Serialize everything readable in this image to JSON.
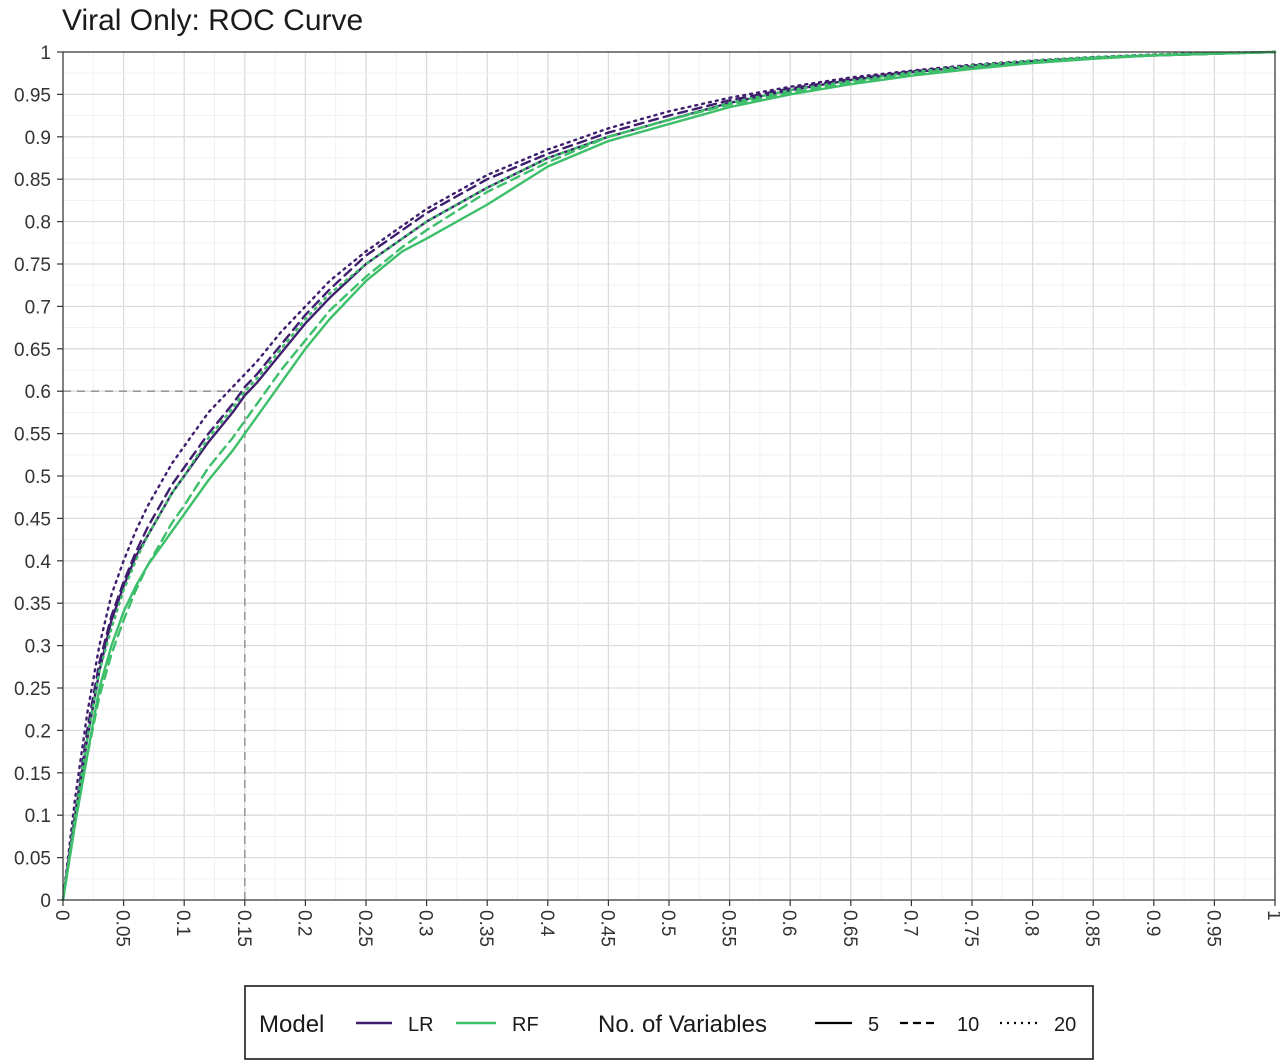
{
  "chart_data": {
    "type": "line",
    "title": "Viral Only: ROC Curve",
    "xlabel": "",
    "ylabel": "",
    "xlim": [
      0,
      1
    ],
    "ylim": [
      0,
      1
    ],
    "grid": true,
    "x_ticks": [
      "0",
      "0.05",
      "0.1",
      "0.15",
      "0.2",
      "0.25",
      "0.3",
      "0.35",
      "0.4",
      "0.45",
      "0.5",
      "0.55",
      "0.6",
      "0.65",
      "0.7",
      "0.75",
      "0.8",
      "0.85",
      "0.9",
      "0.95",
      "1"
    ],
    "y_ticks": [
      "0",
      "0.05",
      "0.1",
      "0.15",
      "0.2",
      "0.25",
      "0.3",
      "0.35",
      "0.4",
      "0.45",
      "0.5",
      "0.55",
      "0.6",
      "0.65",
      "0.7",
      "0.75",
      "0.8",
      "0.85",
      "0.9",
      "0.95",
      "1"
    ],
    "reference_lines": [
      {
        "axis": "y",
        "value": 0.6,
        "from": 0,
        "to": 0.15,
        "style": "dashed",
        "color": "#999999"
      },
      {
        "axis": "x",
        "value": 0.15,
        "from": 0,
        "to": 0.6,
        "style": "dashed",
        "color": "#999999"
      }
    ],
    "legend": {
      "placement": "bottom",
      "model_title": "Model",
      "model_entries": [
        {
          "label": "LR",
          "color": "#3f1e6e"
        },
        {
          "label": "RF",
          "color": "#3dbf6a"
        }
      ],
      "vars_title": "No. of Variables",
      "vars_entries": [
        {
          "label": "5",
          "style": "solid"
        },
        {
          "label": "10",
          "style": "dashed"
        },
        {
          "label": "20",
          "style": "dotted"
        }
      ]
    },
    "series": [
      {
        "model": "LR",
        "variables": "5",
        "color": "#3f1e6e",
        "style": "solid",
        "x": [
          0,
          0.01,
          0.02,
          0.03,
          0.04,
          0.05,
          0.06,
          0.07,
          0.08,
          0.09,
          0.1,
          0.12,
          0.14,
          0.15,
          0.16,
          0.18,
          0.2,
          0.22,
          0.25,
          0.28,
          0.3,
          0.35,
          0.4,
          0.45,
          0.5,
          0.55,
          0.6,
          0.65,
          0.7,
          0.75,
          0.8,
          0.85,
          0.9,
          0.95,
          1
        ],
        "y": [
          0,
          0.1,
          0.19,
          0.27,
          0.33,
          0.37,
          0.405,
          0.43,
          0.455,
          0.48,
          0.5,
          0.54,
          0.575,
          0.595,
          0.61,
          0.645,
          0.68,
          0.71,
          0.75,
          0.78,
          0.8,
          0.84,
          0.875,
          0.9,
          0.92,
          0.94,
          0.955,
          0.967,
          0.976,
          0.983,
          0.989,
          0.993,
          0.996,
          0.998,
          1
        ]
      },
      {
        "model": "LR",
        "variables": "10",
        "color": "#3f1e6e",
        "style": "dashed",
        "x": [
          0,
          0.01,
          0.02,
          0.03,
          0.04,
          0.05,
          0.06,
          0.07,
          0.08,
          0.09,
          0.1,
          0.12,
          0.14,
          0.15,
          0.16,
          0.18,
          0.2,
          0.22,
          0.25,
          0.28,
          0.3,
          0.35,
          0.4,
          0.45,
          0.5,
          0.55,
          0.6,
          0.65,
          0.7,
          0.75,
          0.8,
          0.85,
          0.9,
          0.95,
          1
        ],
        "y": [
          0,
          0.1,
          0.2,
          0.28,
          0.335,
          0.375,
          0.41,
          0.44,
          0.465,
          0.49,
          0.51,
          0.55,
          0.585,
          0.605,
          0.62,
          0.655,
          0.69,
          0.72,
          0.76,
          0.79,
          0.81,
          0.85,
          0.88,
          0.905,
          0.925,
          0.943,
          0.957,
          0.968,
          0.977,
          0.984,
          0.989,
          0.993,
          0.996,
          0.998,
          1
        ]
      },
      {
        "model": "LR",
        "variables": "20",
        "color": "#3f1e6e",
        "style": "dotted",
        "x": [
          0,
          0.01,
          0.02,
          0.03,
          0.04,
          0.05,
          0.06,
          0.07,
          0.08,
          0.09,
          0.1,
          0.12,
          0.14,
          0.15,
          0.16,
          0.18,
          0.2,
          0.22,
          0.25,
          0.28,
          0.3,
          0.35,
          0.4,
          0.45,
          0.5,
          0.55,
          0.6,
          0.65,
          0.7,
          0.75,
          0.8,
          0.85,
          0.9,
          0.95,
          1
        ],
        "y": [
          0,
          0.12,
          0.22,
          0.3,
          0.36,
          0.4,
          0.435,
          0.465,
          0.49,
          0.515,
          0.535,
          0.575,
          0.605,
          0.62,
          0.635,
          0.67,
          0.7,
          0.73,
          0.765,
          0.795,
          0.815,
          0.855,
          0.885,
          0.91,
          0.93,
          0.946,
          0.959,
          0.97,
          0.978,
          0.985,
          0.99,
          0.994,
          0.997,
          0.999,
          1
        ]
      },
      {
        "model": "RF",
        "variables": "5",
        "color": "#3dbf6a",
        "style": "solid",
        "x": [
          0,
          0.01,
          0.02,
          0.03,
          0.04,
          0.05,
          0.06,
          0.07,
          0.08,
          0.09,
          0.1,
          0.12,
          0.14,
          0.15,
          0.16,
          0.18,
          0.2,
          0.22,
          0.25,
          0.28,
          0.3,
          0.35,
          0.4,
          0.45,
          0.5,
          0.55,
          0.6,
          0.65,
          0.7,
          0.75,
          0.8,
          0.85,
          0.9,
          0.95,
          1
        ],
        "y": [
          0,
          0.09,
          0.17,
          0.25,
          0.3,
          0.34,
          0.37,
          0.395,
          0.415,
          0.435,
          0.455,
          0.495,
          0.53,
          0.55,
          0.57,
          0.61,
          0.65,
          0.685,
          0.73,
          0.765,
          0.78,
          0.82,
          0.865,
          0.895,
          0.915,
          0.935,
          0.95,
          0.962,
          0.972,
          0.98,
          0.987,
          0.992,
          0.996,
          0.998,
          1
        ]
      },
      {
        "model": "RF",
        "variables": "10",
        "color": "#3dbf6a",
        "style": "dashed",
        "x": [
          0,
          0.01,
          0.02,
          0.03,
          0.04,
          0.05,
          0.06,
          0.07,
          0.08,
          0.09,
          0.1,
          0.12,
          0.14,
          0.15,
          0.16,
          0.18,
          0.2,
          0.22,
          0.25,
          0.28,
          0.3,
          0.35,
          0.4,
          0.45,
          0.5,
          0.55,
          0.6,
          0.65,
          0.7,
          0.75,
          0.8,
          0.85,
          0.9,
          0.95,
          1
        ],
        "y": [
          0,
          0.09,
          0.17,
          0.24,
          0.29,
          0.33,
          0.365,
          0.395,
          0.42,
          0.445,
          0.465,
          0.51,
          0.545,
          0.565,
          0.585,
          0.625,
          0.66,
          0.695,
          0.735,
          0.77,
          0.79,
          0.835,
          0.87,
          0.9,
          0.92,
          0.938,
          0.952,
          0.964,
          0.974,
          0.982,
          0.988,
          0.993,
          0.996,
          0.998,
          1
        ]
      },
      {
        "model": "RF",
        "variables": "20",
        "color": "#3dbf6a",
        "style": "dotted",
        "x": [
          0,
          0.01,
          0.02,
          0.03,
          0.04,
          0.05,
          0.06,
          0.07,
          0.08,
          0.09,
          0.1,
          0.12,
          0.14,
          0.15,
          0.16,
          0.18,
          0.2,
          0.22,
          0.25,
          0.28,
          0.3,
          0.35,
          0.4,
          0.45,
          0.5,
          0.55,
          0.6,
          0.65,
          0.7,
          0.75,
          0.8,
          0.85,
          0.9,
          0.95,
          1
        ],
        "y": [
          0,
          0.1,
          0.19,
          0.27,
          0.32,
          0.365,
          0.4,
          0.43,
          0.455,
          0.48,
          0.5,
          0.545,
          0.58,
          0.6,
          0.615,
          0.65,
          0.685,
          0.715,
          0.75,
          0.78,
          0.8,
          0.84,
          0.875,
          0.9,
          0.92,
          0.94,
          0.955,
          0.966,
          0.976,
          0.984,
          0.99,
          0.994,
          0.997,
          0.999,
          1
        ]
      }
    ]
  }
}
